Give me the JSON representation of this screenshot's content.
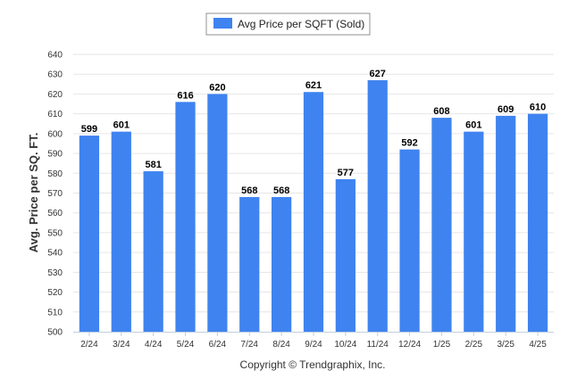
{
  "colors": {
    "bar": "#3f83f0",
    "grid": "#e6e6e6",
    "axis": "#c0d0e0",
    "legend_border": "#909090"
  },
  "legend": {
    "label": "Avg Price per SQFT (Sold)"
  },
  "footer": {
    "copyright": "Copyright © Trendgraphix, Inc."
  },
  "chart_data": {
    "type": "bar",
    "ylabel": "Avg. Price per SQ. FT.",
    "xlabel": "",
    "ylim": [
      500,
      640
    ],
    "ytick_step": 10,
    "grid": true,
    "legend_position": "top-center",
    "categories": [
      "2/24",
      "3/24",
      "4/24",
      "5/24",
      "6/24",
      "7/24",
      "8/24",
      "9/24",
      "10/24",
      "11/24",
      "12/24",
      "1/25",
      "2/25",
      "3/25",
      "4/25"
    ],
    "series": [
      {
        "name": "Avg Price per SQFT (Sold)",
        "values": [
          599,
          601,
          581,
          616,
          620,
          568,
          568,
          621,
          577,
          627,
          592,
          608,
          601,
          609,
          610
        ]
      }
    ]
  }
}
